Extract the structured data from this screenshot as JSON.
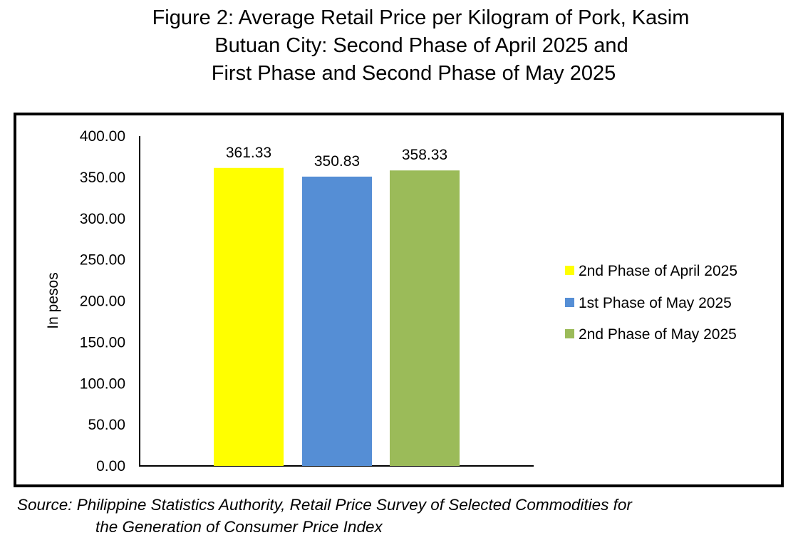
{
  "title_lines": [
    "Figure 2: Average Retail Price per Kilogram of Pork, Kasim",
    "Butuan City: Second Phase of April 2025 and",
    "First Phase and Second Phase of May 2025"
  ],
  "source_lines": [
    "Source: Philippine Statistics Authority, Retail Price Survey of Selected Commodities for",
    "the Generation of Consumer Price Index"
  ],
  "chart_data": {
    "type": "bar",
    "ylabel": "In pesos",
    "ylim": [
      0,
      400
    ],
    "yticks": [
      "0.00",
      "50.00",
      "100.00",
      "150.00",
      "200.00",
      "250.00",
      "300.00",
      "350.00",
      "400.00"
    ],
    "grid": false,
    "legend_position": "right",
    "series": [
      {
        "name": "2nd Phase of April 2025",
        "value": 361.33,
        "label": "361.33",
        "color": "#FFFF00"
      },
      {
        "name": "1st Phase of May 2025",
        "value": 350.83,
        "label": "350.83",
        "color": "#558ED5"
      },
      {
        "name": "2nd Phase of May 2025",
        "value": 358.33,
        "label": "358.33",
        "color": "#9BBB59"
      }
    ]
  }
}
